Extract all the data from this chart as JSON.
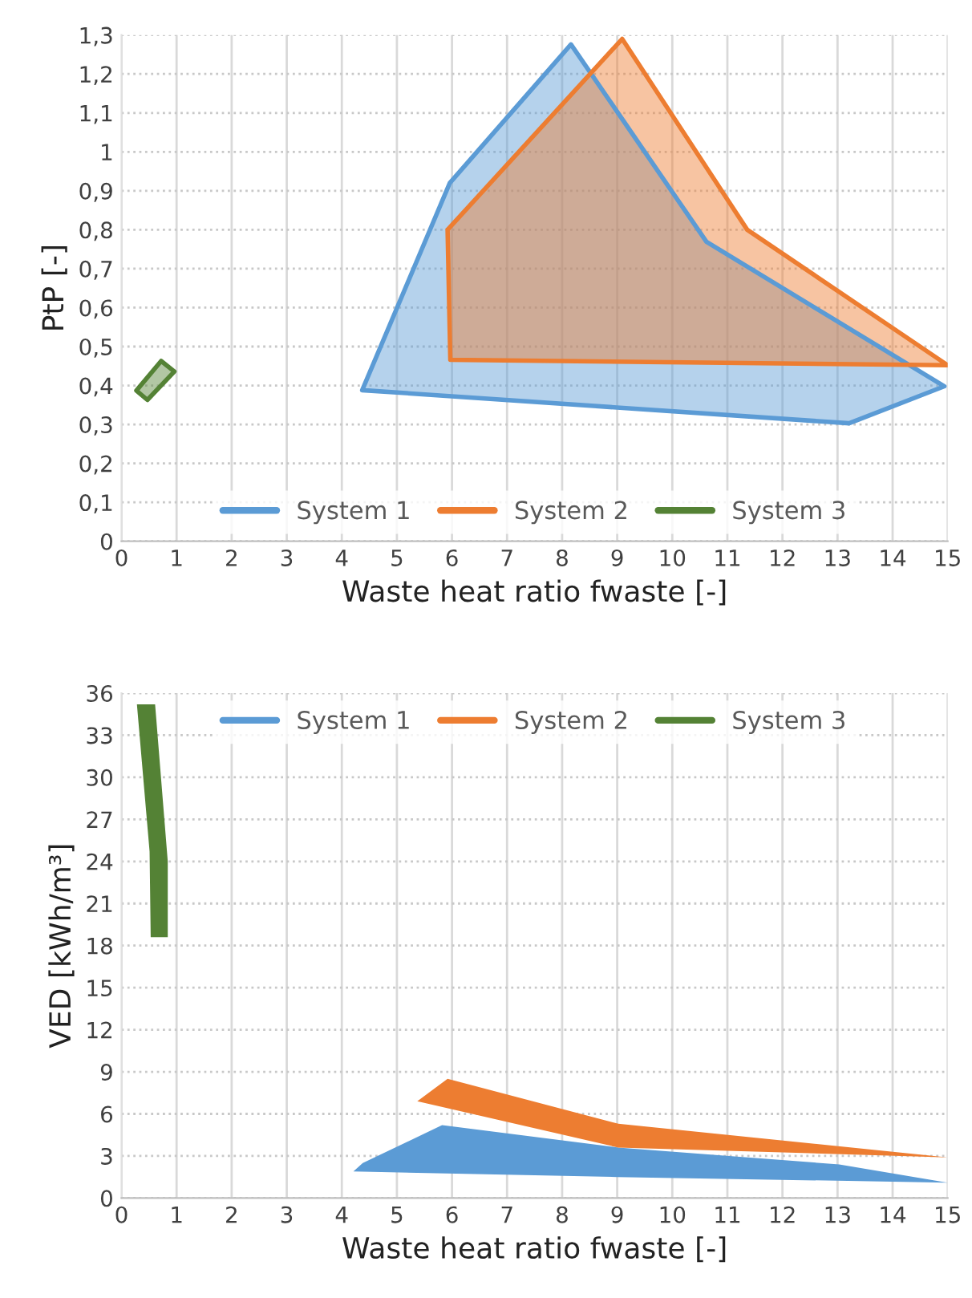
{
  "chart_data": [
    {
      "type": "area",
      "xlabel": "Waste heat ratio fwaste [-]",
      "ylabel": "PtP [-]",
      "xlim": [
        0,
        15
      ],
      "xticks": [
        0,
        1,
        2,
        3,
        4,
        5,
        6,
        7,
        8,
        9,
        10,
        11,
        12,
        13,
        14,
        15
      ],
      "ylim": [
        0,
        1.3
      ],
      "yticks": [
        0,
        {
          "value": 0.1,
          "label": "0,1"
        },
        {
          "value": 0.2,
          "label": "0,2"
        },
        {
          "value": 0.3,
          "label": "0,3"
        },
        {
          "value": 0.4,
          "label": "0,4"
        },
        {
          "value": 0.5,
          "label": "0,5"
        },
        {
          "value": 0.6,
          "label": "0,6"
        },
        {
          "value": 0.7,
          "label": "0,7"
        },
        {
          "value": 0.8,
          "label": "0,8"
        },
        {
          "value": 0.9,
          "label": "0,9"
        },
        1,
        {
          "value": 1.1,
          "label": "1,1"
        },
        {
          "value": 1.2,
          "label": "1,2"
        },
        {
          "value": 1.3,
          "label": "1,3"
        }
      ],
      "grid": true,
      "legend": "bottom",
      "line_style": "solid",
      "series": [
        {
          "name": "System 1",
          "color": "#5b9bd5",
          "x": [
            4.37,
            5.96,
            8.16,
            10.62,
            14.94,
            13.21
          ],
          "values": [
            0.388,
            0.92,
            1.276,
            0.769,
            0.398,
            0.303
          ]
        },
        {
          "name": "System 2",
          "color": "#ed7d31",
          "x": [
            5.92,
            9.09,
            11.36,
            15.0,
            5.97
          ],
          "values": [
            0.8,
            1.29,
            0.8,
            0.452,
            0.466
          ]
        },
        {
          "name": "System 3",
          "color": "#548235",
          "x": [
            0.27,
            0.47,
            0.96,
            0.72
          ],
          "values": [
            0.387,
            0.363,
            0.436,
            0.463
          ]
        }
      ]
    },
    {
      "type": "area",
      "xlabel": "Waste heat ratio fwaste [-]",
      "ylabel": "VED [kWh/m³]",
      "xlim": [
        0,
        15
      ],
      "xticks": [
        0,
        1,
        2,
        3,
        4,
        5,
        6,
        7,
        8,
        9,
        10,
        11,
        12,
        13,
        14,
        15
      ],
      "ylim": [
        0,
        36
      ],
      "yticks": [
        0,
        3,
        6,
        9,
        12,
        15,
        18,
        21,
        24,
        27,
        30,
        33,
        36
      ],
      "grid": true,
      "legend": "top",
      "series": [
        {
          "name": "System 1",
          "color": "#5b9bd5",
          "x": [
            4.21,
            4.38,
            5.82,
            9.02,
            13.03,
            15.0,
            9.0
          ],
          "values": [
            1.9,
            2.5,
            5.2,
            3.6,
            2.4,
            1.1,
            1.5
          ]
        },
        {
          "name": "System 2",
          "color": "#ed7d31",
          "x": [
            5.37,
            5.92,
            9.02,
            15.0,
            9.02
          ],
          "values": [
            6.9,
            8.5,
            5.3,
            2.9,
            3.6
          ]
        },
        {
          "name": "System 3",
          "color": "#548235",
          "x": [
            0.28,
            0.61,
            0.84,
            0.84,
            0.53,
            0.51
          ],
          "values": [
            35.2,
            35.2,
            24.0,
            18.6,
            18.6,
            24.7
          ]
        }
      ]
    }
  ]
}
